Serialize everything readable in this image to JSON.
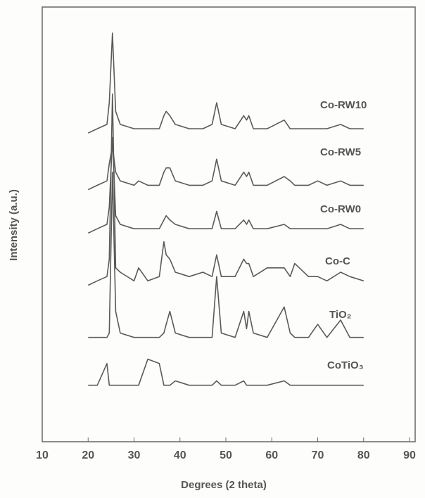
{
  "chart_data": {
    "type": "line",
    "x_label": "Degrees (2 theta)",
    "y_label": "Intensity (a.u.)",
    "x": [
      20,
      22,
      24.1,
      24.6,
      25.3,
      26,
      27,
      30,
      31,
      33,
      35.5,
      36.5,
      37,
      37.8,
      39,
      42,
      45,
      47,
      48,
      49,
      52,
      53.9,
      54.5,
      55,
      56,
      59,
      62.7,
      64,
      65,
      68,
      70,
      72,
      75,
      77,
      80
    ],
    "series": [
      {
        "name": "Co-RW10",
        "color": "#5a5a5a",
        "values": [
          71,
          72,
          73,
          78,
          94,
          76,
          73,
          72,
          72,
          72,
          72,
          75,
          76,
          75,
          73,
          72,
          72,
          73,
          78,
          73,
          72,
          75,
          74,
          75,
          72,
          72,
          74,
          72,
          72,
          72,
          72,
          72,
          73,
          72,
          72
        ]
      },
      {
        "name": "Co-RW5",
        "color": "#5a5a5a",
        "values": [
          58,
          59,
          60,
          64,
          68,
          62,
          60,
          59,
          60,
          59,
          59,
          62,
          63,
          63,
          60,
          59,
          59,
          60,
          65,
          60,
          59,
          62,
          61,
          62,
          59,
          59,
          61,
          60,
          59,
          59,
          60,
          59,
          60,
          59,
          59
        ]
      },
      {
        "name": "Co-RW0",
        "color": "#5a5a5a",
        "values": [
          48,
          49,
          50,
          54,
          70,
          52,
          50,
          49,
          49,
          49,
          49,
          51,
          52,
          51,
          50,
          49,
          49,
          49,
          53,
          49,
          49,
          51,
          50,
          51,
          49,
          49,
          50,
          49,
          49,
          49,
          49,
          49,
          50,
          49,
          49
        ]
      },
      {
        "name": "Co-C",
        "color": "#5a5a5a",
        "values": [
          36,
          37,
          38,
          42,
          80,
          40,
          39,
          37,
          40,
          37,
          38,
          46,
          43,
          42,
          39,
          38,
          39,
          38,
          43,
          38,
          38,
          42,
          41,
          41,
          38,
          40,
          40,
          38,
          41,
          38,
          38,
          37,
          39,
          38,
          37
        ]
      },
      {
        "name": "TiO₂",
        "color": "#5a5a5a",
        "values": [
          24,
          24,
          24,
          25,
          62,
          30,
          25,
          24,
          24,
          24,
          24,
          25,
          27,
          30,
          25,
          24,
          24,
          24,
          38,
          25,
          24,
          30,
          26,
          30,
          25,
          24,
          31,
          25,
          24,
          24,
          27,
          24,
          28,
          24,
          24
        ]
      },
      {
        "name": "CoTiO₃",
        "color": "#5a5a5a",
        "values": [
          13,
          13,
          18,
          13,
          13,
          13,
          13,
          13,
          13,
          19,
          18,
          13,
          13,
          13,
          14,
          13,
          13,
          13,
          14,
          13,
          13,
          14,
          13,
          13,
          13,
          13,
          14,
          13,
          13,
          13,
          13,
          13,
          13,
          13,
          13
        ]
      }
    ],
    "xlim": [
      10,
      90
    ],
    "xticks": [
      10,
      20,
      30,
      40,
      50,
      60,
      70,
      80,
      90
    ],
    "ylim": [
      0,
      100
    ]
  }
}
